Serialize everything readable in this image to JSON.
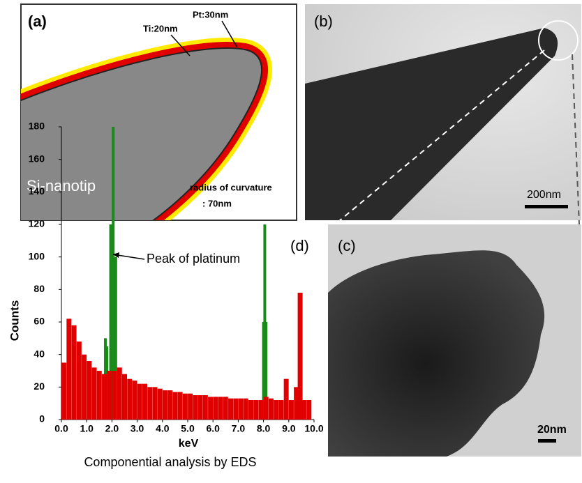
{
  "panels": {
    "a": {
      "label": "(a)",
      "ti": "Ti:20nm",
      "pt": "Pt:30nm",
      "tip": "Si-nanotip",
      "radius": "radius of curvature",
      "radius_value": ": 70nm"
    },
    "b": {
      "label": "(b)",
      "scale_bar": "200nm"
    },
    "c": {
      "label": "(c)",
      "scale_bar": "20nm"
    }
  },
  "chart_data": {
    "type": "bar",
    "label": "(d)",
    "ylabel": "Counts",
    "xlabel": "keV",
    "annotation": "Peak of platinum",
    "xlim": [
      0,
      10
    ],
    "ylim": [
      0,
      180
    ],
    "xticks": [
      {
        "value": 0,
        "label": "0.0"
      },
      {
        "value": 1,
        "label": "1.0"
      },
      {
        "value": 2,
        "label": "2.0"
      },
      {
        "value": 3,
        "label": "3.0"
      },
      {
        "value": 4,
        "label": "4.0"
      },
      {
        "value": 5,
        "label": "5.0"
      },
      {
        "value": 6,
        "label": "6.0"
      },
      {
        "value": 7,
        "label": "7.0"
      },
      {
        "value": 8,
        "label": "8.0"
      },
      {
        "value": 9,
        "label": "9.0"
      },
      {
        "value": 10,
        "label": "10.0"
      }
    ],
    "yticks": [
      0,
      20,
      40,
      60,
      80,
      100,
      120,
      140,
      160,
      180
    ],
    "series": [
      {
        "color": "#e00000",
        "x": [
          0.1,
          0.3,
          0.5,
          0.7,
          0.9,
          1.1,
          1.3,
          1.5,
          1.7,
          1.9,
          2.1,
          2.3,
          2.5,
          2.7,
          2.9,
          3.1,
          3.3,
          3.5,
          3.7,
          3.9,
          4.1,
          4.3,
          4.5,
          4.7,
          4.9,
          5.1,
          5.3,
          5.5,
          5.7,
          5.9,
          6.1,
          6.3,
          6.5,
          6.7,
          6.9,
          7.1,
          7.3,
          7.5,
          7.7,
          7.9,
          8.1,
          8.3,
          8.5,
          8.7,
          8.9,
          9.1,
          9.3,
          9.45,
          9.6,
          9.8
        ],
        "values": [
          35,
          62,
          58,
          48,
          40,
          36,
          32,
          30,
          28,
          30,
          30,
          32,
          28,
          25,
          24,
          22,
          22,
          20,
          20,
          19,
          18,
          18,
          17,
          17,
          16,
          16,
          15,
          15,
          15,
          14,
          14,
          14,
          14,
          13,
          13,
          13,
          13,
          12,
          12,
          12,
          14,
          13,
          12,
          12,
          25,
          12,
          20,
          78,
          12,
          12
        ]
      },
      {
        "color": "#1a8a1a",
        "x": [
          1.74,
          1.8,
          1.95,
          2.05,
          2.15,
          8.0,
          8.05,
          8.1
        ],
        "values": [
          50,
          45,
          120,
          180,
          100,
          60,
          120,
          60
        ]
      }
    ]
  },
  "caption": "Componential analysis by EDS"
}
